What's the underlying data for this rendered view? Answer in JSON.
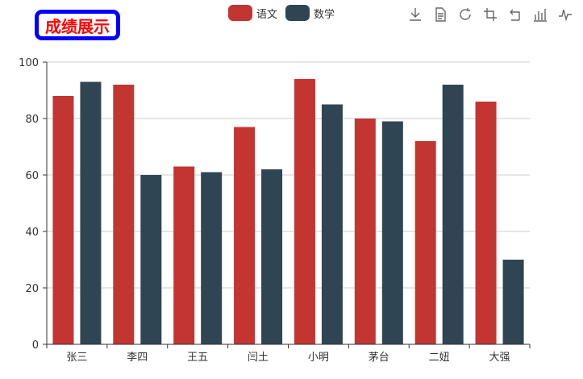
{
  "title": "成绩展示",
  "colors": {
    "chinese": "#c23531",
    "math": "#2f4554",
    "title_text": "#ff0000",
    "title_border": "#0000ff",
    "grid": "#cccccc",
    "axis": "#333333"
  },
  "toolbox": [
    {
      "icon": "download-icon"
    },
    {
      "icon": "data-view-icon"
    },
    {
      "icon": "restore-icon"
    },
    {
      "icon": "zoom-icon"
    },
    {
      "icon": "zoom-reset-icon"
    },
    {
      "icon": "bar-chart-icon"
    },
    {
      "icon": "line-chart-icon"
    }
  ],
  "chart_data": {
    "type": "bar",
    "title": "成绩展示",
    "categories": [
      "张三",
      "李四",
      "王五",
      "闫土",
      "小明",
      "茅台",
      "二妞",
      "大强"
    ],
    "series": [
      {
        "name": "语文",
        "color": "#c23531",
        "values": [
          88,
          92,
          63,
          77,
          94,
          80,
          72,
          86
        ]
      },
      {
        "name": "数学",
        "color": "#2f4554",
        "values": [
          93,
          60,
          61,
          62,
          85,
          79,
          92,
          30
        ]
      }
    ],
    "ylim": [
      0,
      100
    ],
    "yticks": [
      0,
      20,
      40,
      60,
      80,
      100
    ],
    "grid": true,
    "legend_position": "top-center"
  }
}
